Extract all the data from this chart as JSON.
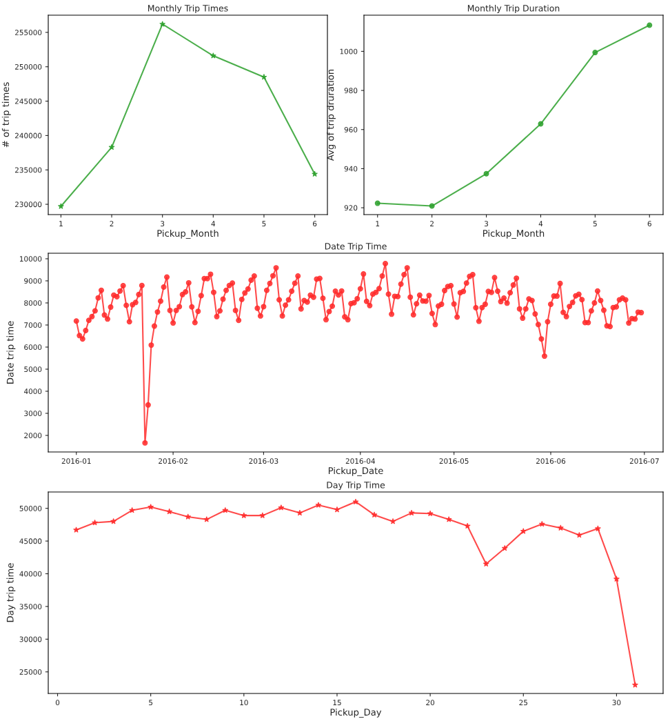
{
  "chart_data": [
    {
      "type": "line",
      "title": "Monthly Trip Times",
      "xlabel": "Pickup_Month",
      "ylabel": "# of trip times",
      "marker": "star",
      "line_style": "solid",
      "grid": false,
      "x": [
        1,
        2,
        3,
        4,
        5,
        6
      ],
      "series": [
        {
          "color": "#2ca02c",
          "values": [
            229700,
            238300,
            256200,
            251600,
            248500,
            234400
          ]
        }
      ],
      "xlim": [
        0.75,
        6.25
      ],
      "xticks": [
        1,
        2,
        3,
        4,
        5,
        6
      ],
      "ylim": [
        228500,
        257500
      ],
      "yticks": [
        230000,
        235000,
        240000,
        245000,
        250000,
        255000
      ]
    },
    {
      "type": "line",
      "title": "Monthly Trip Duration",
      "xlabel": "Pickup_Month",
      "ylabel": "Avg of trip druration",
      "marker": "circle",
      "line_style": "solid",
      "grid": false,
      "x": [
        1,
        2,
        3,
        4,
        5,
        6
      ],
      "series": [
        {
          "color": "#2ca02c",
          "values": [
            922.3,
            920.9,
            937.4,
            962.9,
            999.4,
            1013.4
          ]
        }
      ],
      "xlim": [
        0.75,
        6.25
      ],
      "xticks": [
        1,
        2,
        3,
        4,
        5,
        6
      ],
      "ylim": [
        916.5,
        1018.5
      ],
      "yticks": [
        920,
        940,
        960,
        980,
        1000
      ]
    },
    {
      "type": "line",
      "title": "Date Trip Time",
      "xlabel": "Pickup_Date",
      "ylabel": "Date trip time",
      "marker": "circle",
      "line_style": "solid",
      "grid": false,
      "x": [
        "2016-01-01",
        "2016-01-02",
        "2016-01-03",
        "2016-01-04",
        "2016-01-05",
        "2016-01-06",
        "2016-01-07",
        "2016-01-08",
        "2016-01-09",
        "2016-01-10",
        "2016-01-11",
        "2016-01-12",
        "2016-01-13",
        "2016-01-14",
        "2016-01-15",
        "2016-01-16",
        "2016-01-17",
        "2016-01-18",
        "2016-01-19",
        "2016-01-20",
        "2016-01-21",
        "2016-01-22",
        "2016-01-23",
        "2016-01-24",
        "2016-01-25",
        "2016-01-26",
        "2016-01-27",
        "2016-01-28",
        "2016-01-29",
        "2016-01-30",
        "2016-01-31",
        "2016-02-01",
        "2016-02-02",
        "2016-02-03",
        "2016-02-04",
        "2016-02-05",
        "2016-02-06",
        "2016-02-07",
        "2016-02-08",
        "2016-02-09",
        "2016-02-10",
        "2016-02-11",
        "2016-02-12",
        "2016-02-13",
        "2016-02-14",
        "2016-02-15",
        "2016-02-16",
        "2016-02-17",
        "2016-02-18",
        "2016-02-19",
        "2016-02-20",
        "2016-02-21",
        "2016-02-22",
        "2016-02-23",
        "2016-02-24",
        "2016-02-25",
        "2016-02-26",
        "2016-02-27",
        "2016-02-28",
        "2016-02-29",
        "2016-03-01",
        "2016-03-02",
        "2016-03-03",
        "2016-03-04",
        "2016-03-05",
        "2016-03-06",
        "2016-03-07",
        "2016-03-08",
        "2016-03-09",
        "2016-03-10",
        "2016-03-11",
        "2016-03-12",
        "2016-03-13",
        "2016-03-14",
        "2016-03-15",
        "2016-03-16",
        "2016-03-17",
        "2016-03-18",
        "2016-03-19",
        "2016-03-20",
        "2016-03-21",
        "2016-03-22",
        "2016-03-23",
        "2016-03-24",
        "2016-03-25",
        "2016-03-26",
        "2016-03-27",
        "2016-03-28",
        "2016-03-29",
        "2016-03-30",
        "2016-03-31",
        "2016-04-01",
        "2016-04-02",
        "2016-04-03",
        "2016-04-04",
        "2016-04-05",
        "2016-04-06",
        "2016-04-07",
        "2016-04-08",
        "2016-04-09",
        "2016-04-10",
        "2016-04-11",
        "2016-04-12",
        "2016-04-13",
        "2016-04-14",
        "2016-04-15",
        "2016-04-16",
        "2016-04-17",
        "2016-04-18",
        "2016-04-19",
        "2016-04-20",
        "2016-04-21",
        "2016-04-22",
        "2016-04-23",
        "2016-04-24",
        "2016-04-25",
        "2016-04-26",
        "2016-04-27",
        "2016-04-28",
        "2016-04-29",
        "2016-04-30",
        "2016-05-01",
        "2016-05-02",
        "2016-05-03",
        "2016-05-04",
        "2016-05-05",
        "2016-05-06",
        "2016-05-07",
        "2016-05-08",
        "2016-05-09",
        "2016-05-10",
        "2016-05-11",
        "2016-05-12",
        "2016-05-13",
        "2016-05-14",
        "2016-05-15",
        "2016-05-16",
        "2016-05-17",
        "2016-05-18",
        "2016-05-19",
        "2016-05-20",
        "2016-05-21",
        "2016-05-22",
        "2016-05-23",
        "2016-05-24",
        "2016-05-25",
        "2016-05-26",
        "2016-05-27",
        "2016-05-28",
        "2016-05-29",
        "2016-05-30",
        "2016-05-31",
        "2016-06-01",
        "2016-06-02",
        "2016-06-03",
        "2016-06-04",
        "2016-06-05",
        "2016-06-06",
        "2016-06-07",
        "2016-06-08",
        "2016-06-09",
        "2016-06-10",
        "2016-06-11",
        "2016-06-12",
        "2016-06-13",
        "2016-06-14",
        "2016-06-15",
        "2016-06-16",
        "2016-06-17",
        "2016-06-18",
        "2016-06-19",
        "2016-06-20",
        "2016-06-21",
        "2016-06-22",
        "2016-06-23",
        "2016-06-24",
        "2016-06-25",
        "2016-06-26",
        "2016-06-27",
        "2016-06-28",
        "2016-06-29",
        "2016-06-30"
      ],
      "series": [
        {
          "color": "#ff2a2a",
          "values": [
            7180,
            6520,
            6370,
            6750,
            7210,
            7380,
            7640,
            8230,
            8570,
            7450,
            7270,
            7810,
            8350,
            8280,
            8540,
            8780,
            7890,
            7150,
            7920,
            8020,
            8380,
            8790,
            1660,
            3380,
            6090,
            6950,
            7590,
            8080,
            8720,
            9170,
            7660,
            7090,
            7660,
            7830,
            8380,
            8500,
            8910,
            7820,
            7110,
            7620,
            8330,
            9100,
            9100,
            9300,
            8480,
            7380,
            7640,
            8170,
            8570,
            8790,
            8900,
            7660,
            7210,
            8160,
            8450,
            8630,
            9030,
            9220,
            7760,
            7410,
            7830,
            8570,
            8880,
            9230,
            9590,
            8140,
            7410,
            7900,
            8140,
            8530,
            8890,
            9220,
            7730,
            8110,
            8040,
            8350,
            8260,
            9080,
            9110,
            8210,
            7240,
            7610,
            7850,
            8530,
            8360,
            8540,
            7370,
            7240,
            7970,
            8010,
            8190,
            8640,
            9310,
            8070,
            7880,
            8400,
            8480,
            8650,
            9220,
            9780,
            8400,
            7490,
            8300,
            8290,
            8850,
            9280,
            9590,
            8260,
            7460,
            7960,
            8350,
            8090,
            8080,
            8340,
            7520,
            7020,
            7860,
            7940,
            8560,
            8740,
            8780,
            7950,
            7360,
            8460,
            8520,
            8900,
            9200,
            9280,
            7780,
            7170,
            7790,
            7940,
            8520,
            8480,
            9150,
            8530,
            8060,
            8220,
            7990,
            8460,
            8810,
            9120,
            7730,
            7310,
            7730,
            8180,
            8110,
            7500,
            7020,
            6370,
            5590,
            7150,
            7940,
            8310,
            8310,
            8880,
            7570,
            7380,
            7840,
            8020,
            8320,
            8390,
            8150,
            7110,
            7110,
            7640,
            8000,
            8540,
            8110,
            7670,
            6960,
            6930,
            7790,
            7820,
            8140,
            8220,
            8140,
            7090,
            7290,
            7270,
            7580,
            7560
          ]
        }
      ],
      "xlim": [
        "2015-12-23",
        "2016-07-07"
      ],
      "xticks": [
        {
          "value": "2016-01-01",
          "label": "2016-01"
        },
        {
          "value": "2016-02-01",
          "label": "2016-02"
        },
        {
          "value": "2016-03-01",
          "label": "2016-03"
        },
        {
          "value": "2016-04-01",
          "label": "2016-04"
        },
        {
          "value": "2016-05-01",
          "label": "2016-05"
        },
        {
          "value": "2016-06-01",
          "label": "2016-06"
        },
        {
          "value": "2016-07-01",
          "label": "2016-07"
        }
      ],
      "ylim": [
        1250,
        10250
      ],
      "yticks": [
        2000,
        3000,
        4000,
        5000,
        6000,
        7000,
        8000,
        9000,
        10000
      ]
    },
    {
      "type": "line",
      "title": "Day Trip Time",
      "xlabel": "Pickup_Day",
      "ylabel": "Day trip time",
      "marker": "star",
      "line_style": "solid",
      "grid": false,
      "x": [
        1,
        2,
        3,
        4,
        5,
        6,
        7,
        8,
        9,
        10,
        11,
        12,
        13,
        14,
        15,
        16,
        17,
        18,
        19,
        20,
        21,
        22,
        23,
        24,
        25,
        26,
        27,
        28,
        29,
        30,
        31
      ],
      "series": [
        {
          "color": "#ff2a2a",
          "values": [
            46700,
            47800,
            48000,
            49700,
            50200,
            49500,
            48700,
            48300,
            49700,
            48900,
            48900,
            50100,
            49300,
            50500,
            49800,
            51000,
            49000,
            48000,
            49300,
            49200,
            48300,
            47300,
            41500,
            43900,
            46500,
            47600,
            47000,
            45900,
            46900,
            39200,
            23000
          ]
        }
      ],
      "xlim": [
        -0.5,
        32.5
      ],
      "xticks": [
        0,
        5,
        10,
        15,
        20,
        25,
        30
      ],
      "ylim": [
        21700,
        52500
      ],
      "yticks": [
        25000,
        30000,
        35000,
        40000,
        45000,
        50000
      ]
    }
  ]
}
